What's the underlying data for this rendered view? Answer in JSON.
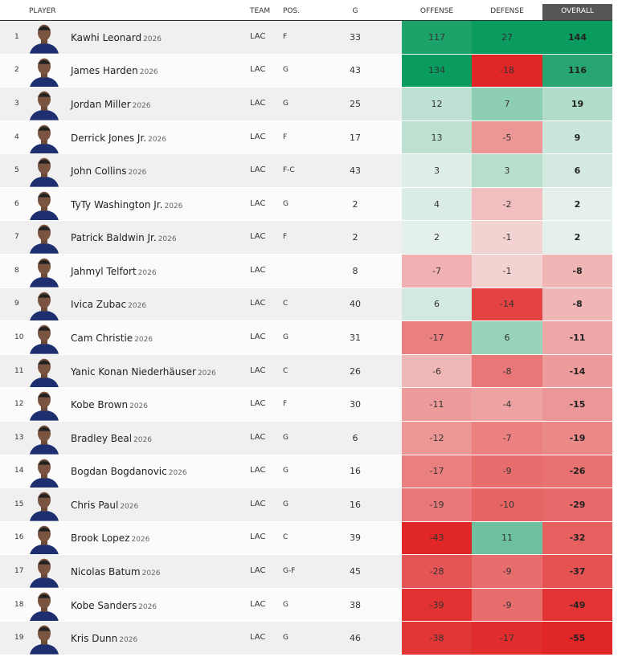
{
  "header": {
    "columns": [
      "PLAYER",
      "TEAM",
      "POS.",
      "G",
      "OFFENSE",
      "DEFENSE",
      "OVERALL"
    ]
  },
  "rows": [
    {
      "rank": 1,
      "name": "Kawhi Leonard",
      "year": 2026,
      "team": "LAC",
      "pos": "F",
      "g": 33,
      "offense": 117,
      "defense": 27,
      "overall": 144
    },
    {
      "rank": 2,
      "name": "James Harden",
      "year": 2026,
      "team": "LAC",
      "pos": "G",
      "g": 43,
      "offense": 134,
      "defense": -18,
      "overall": 116
    },
    {
      "rank": 3,
      "name": "Jordan Miller",
      "year": 2026,
      "team": "LAC",
      "pos": "G",
      "g": 25,
      "offense": 12,
      "defense": 7,
      "overall": 19
    },
    {
      "rank": 4,
      "name": "Derrick Jones Jr.",
      "year": 2026,
      "team": "LAC",
      "pos": "F",
      "g": 17,
      "offense": 13,
      "defense": -5,
      "overall": 9
    },
    {
      "rank": 5,
      "name": "John Collins",
      "year": 2026,
      "team": "LAC",
      "pos": "F-C",
      "g": 43,
      "offense": 3,
      "defense": 3,
      "overall": 6
    },
    {
      "rank": 6,
      "name": "TyTy Washington Jr.",
      "year": 2026,
      "team": "LAC",
      "pos": "G",
      "g": 2,
      "offense": 4,
      "defense": -2,
      "overall": 2
    },
    {
      "rank": 7,
      "name": "Patrick Baldwin Jr.",
      "year": 2026,
      "team": "LAC",
      "pos": "F",
      "g": 2,
      "offense": 2,
      "defense": -1,
      "overall": 2
    },
    {
      "rank": 8,
      "name": "Jahmyl Telfort",
      "year": 2026,
      "team": "LAC",
      "pos": null,
      "g": 8,
      "offense": -7,
      "defense": -1,
      "overall": -8
    },
    {
      "rank": 9,
      "name": "Ivica Zubac",
      "year": 2026,
      "team": "LAC",
      "pos": "C",
      "g": 40,
      "offense": 6,
      "defense": -14,
      "overall": -8
    },
    {
      "rank": 10,
      "name": "Cam Christie",
      "year": 2026,
      "team": "LAC",
      "pos": "G",
      "g": 31,
      "offense": -17,
      "defense": 6,
      "overall": -11
    },
    {
      "rank": 11,
      "name": "Yanic Konan Niederhäuser",
      "year": 2026,
      "team": "LAC",
      "pos": "C",
      "g": 26,
      "offense": -6,
      "defense": -8,
      "overall": -14
    },
    {
      "rank": 12,
      "name": "Kobe Brown",
      "year": 2026,
      "team": "LAC",
      "pos": "F",
      "g": 30,
      "offense": -11,
      "defense": -4,
      "overall": -15
    },
    {
      "rank": 13,
      "name": "Bradley Beal",
      "year": 2026,
      "team": "LAC",
      "pos": "G",
      "g": 6,
      "offense": -12,
      "defense": -7,
      "overall": -19
    },
    {
      "rank": 14,
      "name": "Bogdan Bogdanovic",
      "year": 2026,
      "team": "LAC",
      "pos": "G",
      "g": 16,
      "offense": -17,
      "defense": -9,
      "overall": -26
    },
    {
      "rank": 15,
      "name": "Chris Paul",
      "year": 2026,
      "team": "LAC",
      "pos": "G",
      "g": 16,
      "offense": -19,
      "defense": -10,
      "overall": -29
    },
    {
      "rank": 16,
      "name": "Brook Lopez",
      "year": 2026,
      "team": "LAC",
      "pos": "C",
      "g": 39,
      "offense": -43,
      "defense": 11,
      "overall": -32
    },
    {
      "rank": 17,
      "name": "Nicolas Batum",
      "year": 2026,
      "team": "LAC",
      "pos": "G-F",
      "g": 45,
      "offense": -28,
      "defense": -9,
      "overall": -37
    },
    {
      "rank": 18,
      "name": "Kobe Sanders",
      "year": 2026,
      "team": "LAC",
      "pos": "G",
      "g": 38,
      "offense": -39,
      "defense": -9,
      "overall": -49
    },
    {
      "rank": 19,
      "name": "Kris Dunn",
      "year": 2026,
      "team": "LAC",
      "pos": "G",
      "g": 46,
      "offense": -38,
      "defense": -17,
      "overall": -55
    }
  ]
}
